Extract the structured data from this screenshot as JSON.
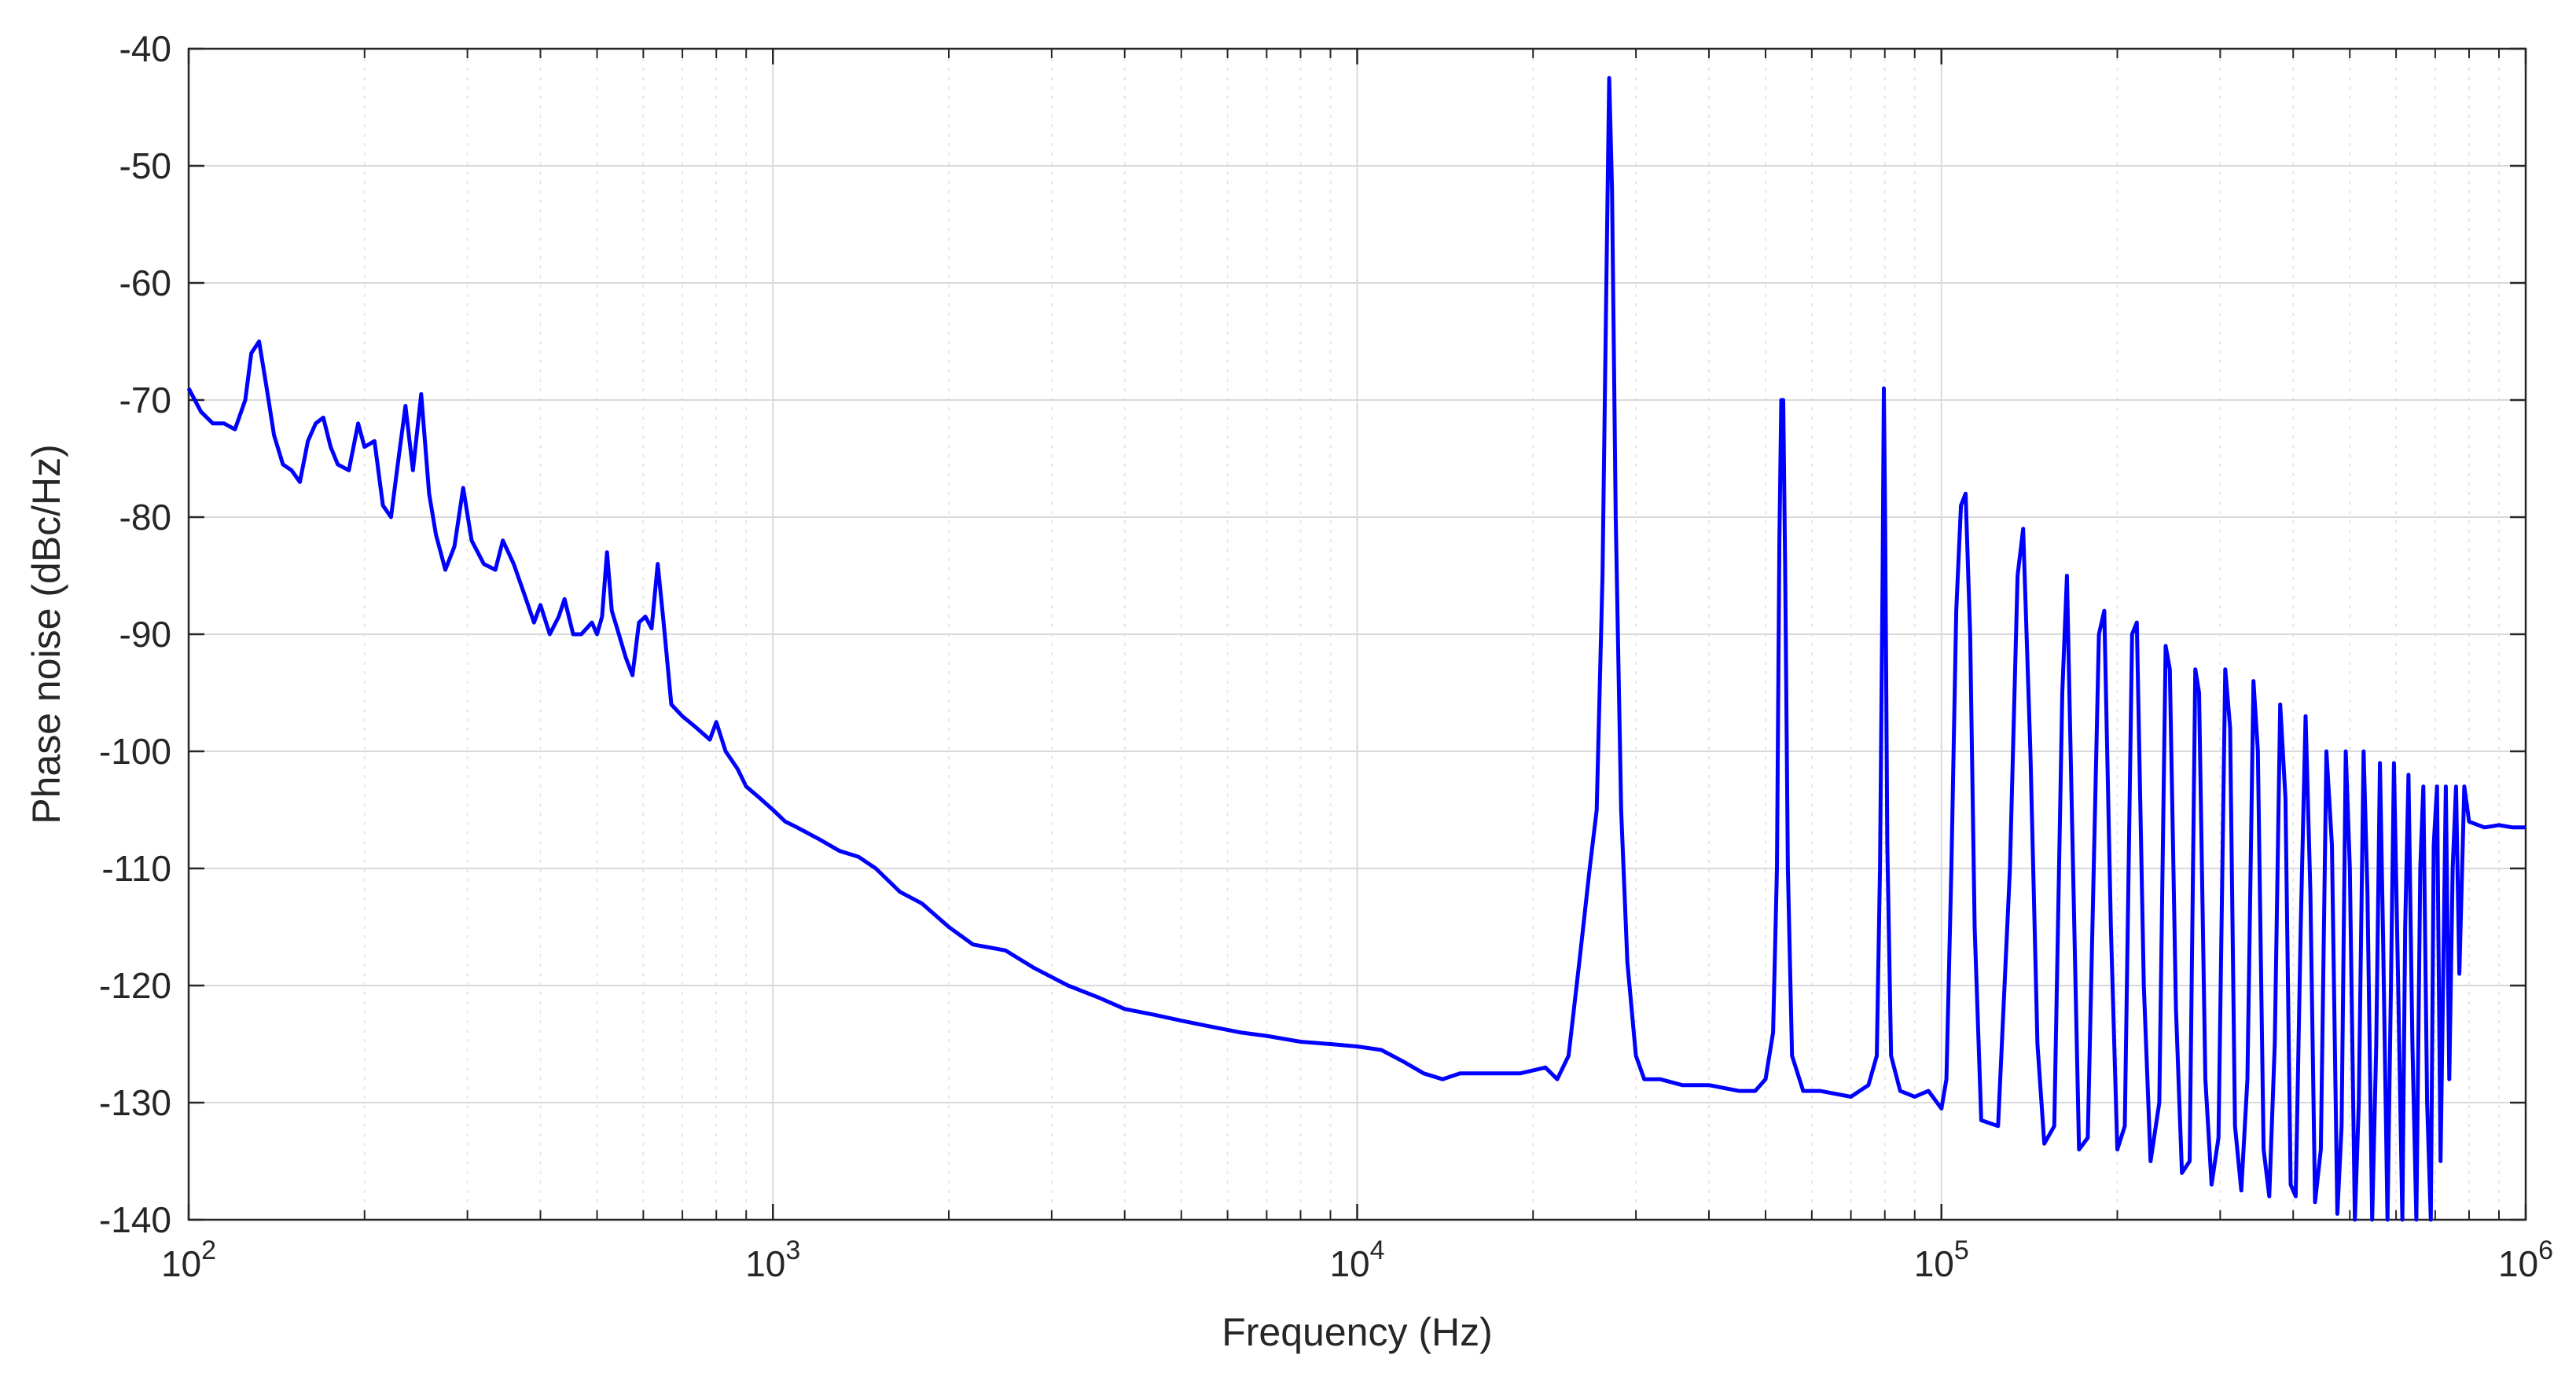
{
  "chart_data": {
    "type": "line",
    "title": "",
    "xlabel": "Frequency (Hz)",
    "ylabel": "Phase noise (dBc/Hz)",
    "x_scale": "log",
    "xlim": [
      100,
      1000000
    ],
    "ylim": [
      -140,
      -40
    ],
    "grid": true,
    "minor_grid": true,
    "legend": "none",
    "line_color": "#0000ff",
    "x_ticks": [
      {
        "value": 100,
        "base": "10",
        "exp": "2"
      },
      {
        "value": 1000,
        "base": "10",
        "exp": "3"
      },
      {
        "value": 10000,
        "base": "10",
        "exp": "4"
      },
      {
        "value": 100000,
        "base": "10",
        "exp": "5"
      },
      {
        "value": 1000000,
        "base": "10",
        "exp": "6"
      }
    ],
    "y_ticks": [
      -40,
      -50,
      -60,
      -70,
      -80,
      -90,
      -100,
      -110,
      -120,
      -130,
      -140
    ],
    "series": [
      {
        "points": [
          [
            100,
            -69
          ],
          [
            105,
            -71
          ],
          [
            110,
            -72
          ],
          [
            115,
            -72
          ],
          [
            120,
            -72.5
          ],
          [
            125,
            -70
          ],
          [
            128,
            -66
          ],
          [
            132,
            -65
          ],
          [
            136,
            -69
          ],
          [
            140,
            -73
          ],
          [
            145,
            -75.5
          ],
          [
            150,
            -76
          ],
          [
            155,
            -77
          ],
          [
            160,
            -73.5
          ],
          [
            165,
            -72
          ],
          [
            170,
            -71.5
          ],
          [
            175,
            -74
          ],
          [
            180,
            -75.5
          ],
          [
            188,
            -76
          ],
          [
            195,
            -72
          ],
          [
            200,
            -74
          ],
          [
            208,
            -73.5
          ],
          [
            215,
            -79
          ],
          [
            222,
            -80
          ],
          [
            228,
            -75.5
          ],
          [
            235,
            -70.5
          ],
          [
            242,
            -76
          ],
          [
            250,
            -69.5
          ],
          [
            258,
            -78
          ],
          [
            265,
            -81.5
          ],
          [
            275,
            -84.5
          ],
          [
            285,
            -82.5
          ],
          [
            295,
            -77.5
          ],
          [
            305,
            -82
          ],
          [
            320,
            -84
          ],
          [
            335,
            -84.5
          ],
          [
            345,
            -82
          ],
          [
            360,
            -84
          ],
          [
            375,
            -86.5
          ],
          [
            390,
            -89
          ],
          [
            400,
            -87.5
          ],
          [
            415,
            -90
          ],
          [
            430,
            -88.5
          ],
          [
            440,
            -87
          ],
          [
            455,
            -90
          ],
          [
            470,
            -90
          ],
          [
            490,
            -89
          ],
          [
            500,
            -90
          ],
          [
            510,
            -88.5
          ],
          [
            520,
            -83
          ],
          [
            530,
            -88
          ],
          [
            545,
            -90
          ],
          [
            560,
            -92
          ],
          [
            575,
            -93.5
          ],
          [
            590,
            -89
          ],
          [
            605,
            -88.5
          ],
          [
            620,
            -89.5
          ],
          [
            635,
            -84
          ],
          [
            650,
            -89
          ],
          [
            670,
            -96
          ],
          [
            700,
            -97
          ],
          [
            740,
            -98
          ],
          [
            780,
            -99
          ],
          [
            800,
            -97.5
          ],
          [
            830,
            -100
          ],
          [
            870,
            -101.5
          ],
          [
            900,
            -103
          ],
          [
            950,
            -104
          ],
          [
            1000,
            -105
          ],
          [
            1050,
            -106
          ],
          [
            1100,
            -106.5
          ],
          [
            1200,
            -107.5
          ],
          [
            1300,
            -108.5
          ],
          [
            1400,
            -109
          ],
          [
            1500,
            -110
          ],
          [
            1650,
            -112
          ],
          [
            1800,
            -113
          ],
          [
            2000,
            -115
          ],
          [
            2200,
            -116.5
          ],
          [
            2500,
            -117
          ],
          [
            2800,
            -118.5
          ],
          [
            3200,
            -120
          ],
          [
            3600,
            -121
          ],
          [
            4000,
            -122
          ],
          [
            4500,
            -122.5
          ],
          [
            5000,
            -123
          ],
          [
            5600,
            -123.5
          ],
          [
            6300,
            -124
          ],
          [
            7000,
            -124.3
          ],
          [
            8000,
            -124.8
          ],
          [
            9000,
            -125
          ],
          [
            10000,
            -125.2
          ],
          [
            11000,
            -125.5
          ],
          [
            12000,
            -126.5
          ],
          [
            13000,
            -127.5
          ],
          [
            14000,
            -128
          ],
          [
            15000,
            -127.5
          ],
          [
            17000,
            -127.5
          ],
          [
            19000,
            -127.5
          ],
          [
            21000,
            -127
          ],
          [
            22000,
            -128
          ],
          [
            23000,
            -126
          ],
          [
            24000,
            -118
          ],
          [
            25000,
            -110
          ],
          [
            25700,
            -105
          ],
          [
            26300,
            -85
          ],
          [
            26700,
            -60
          ],
          [
            27000,
            -42.5
          ],
          [
            27300,
            -52
          ],
          [
            27700,
            -80
          ],
          [
            28300,
            -105
          ],
          [
            29000,
            -118
          ],
          [
            30000,
            -126
          ],
          [
            31000,
            -128
          ],
          [
            33000,
            -128
          ],
          [
            36000,
            -128.5
          ],
          [
            40000,
            -128.5
          ],
          [
            45000,
            -129
          ],
          [
            48000,
            -129
          ],
          [
            50000,
            -128
          ],
          [
            51500,
            -124
          ],
          [
            52300,
            -110
          ],
          [
            52800,
            -82
          ],
          [
            53200,
            -70
          ],
          [
            53600,
            -70
          ],
          [
            54000,
            -84
          ],
          [
            54600,
            -110
          ],
          [
            55500,
            -126
          ],
          [
            58000,
            -129
          ],
          [
            62000,
            -129
          ],
          [
            70000,
            -129.5
          ],
          [
            75000,
            -128.5
          ],
          [
            77500,
            -126
          ],
          [
            78500,
            -110
          ],
          [
            79300,
            -85
          ],
          [
            79700,
            -69
          ],
          [
            80100,
            -80
          ],
          [
            80800,
            -108
          ],
          [
            82000,
            -126
          ],
          [
            85000,
            -129
          ],
          [
            90000,
            -129.5
          ],
          [
            95000,
            -129
          ],
          [
            100000,
            -130.5
          ],
          [
            102000,
            -128
          ],
          [
            104000,
            -110
          ],
          [
            106000,
            -88
          ],
          [
            108000,
            -79
          ],
          [
            110000,
            -78
          ],
          [
            112000,
            -90
          ],
          [
            114000,
            -115
          ],
          [
            117000,
            -131.5
          ],
          [
            125000,
            -132
          ],
          [
            131000,
            -110
          ],
          [
            135000,
            -85
          ],
          [
            138000,
            -81
          ],
          [
            142000,
            -100
          ],
          [
            146000,
            -125
          ],
          [
            150000,
            -133.5
          ],
          [
            156000,
            -132
          ],
          [
            161000,
            -95
          ],
          [
            164000,
            -85
          ],
          [
            168000,
            -110
          ],
          [
            172000,
            -134
          ],
          [
            178000,
            -133
          ],
          [
            186000,
            -90
          ],
          [
            190000,
            -88
          ],
          [
            195000,
            -115
          ],
          [
            200000,
            -134
          ],
          [
            206000,
            -132
          ],
          [
            212000,
            -90
          ],
          [
            216000,
            -89
          ],
          [
            222000,
            -120
          ],
          [
            228000,
            -135
          ],
          [
            236000,
            -130
          ],
          [
            242000,
            -91
          ],
          [
            246000,
            -93
          ],
          [
            252000,
            -122
          ],
          [
            258000,
            -136
          ],
          [
            266000,
            -135
          ],
          [
            272000,
            -93
          ],
          [
            276000,
            -95
          ],
          [
            283000,
            -128
          ],
          [
            290000,
            -137
          ],
          [
            298000,
            -133
          ],
          [
            306000,
            -93
          ],
          [
            312000,
            -98
          ],
          [
            318000,
            -132
          ],
          [
            326000,
            -137.5
          ],
          [
            334000,
            -128
          ],
          [
            342000,
            -94
          ],
          [
            348000,
            -100
          ],
          [
            356000,
            -134
          ],
          [
            364000,
            -138
          ],
          [
            372000,
            -125
          ],
          [
            380000,
            -96
          ],
          [
            388000,
            -104
          ],
          [
            396000,
            -137
          ],
          [
            404000,
            -138
          ],
          [
            412000,
            -115
          ],
          [
            420000,
            -97
          ],
          [
            428000,
            -112
          ],
          [
            436000,
            -138.5
          ],
          [
            446000,
            -134
          ],
          [
            456000,
            -100
          ],
          [
            466000,
            -108
          ],
          [
            476000,
            -139.5
          ],
          [
            484000,
            -132
          ],
          [
            492000,
            -100
          ],
          [
            500000,
            -110
          ],
          [
            510000,
            -140
          ],
          [
            518000,
            -130
          ],
          [
            528000,
            -100
          ],
          [
            536000,
            -112
          ],
          [
            546000,
            -140
          ],
          [
            555000,
            -125
          ],
          [
            563000,
            -101
          ],
          [
            570000,
            -116
          ],
          [
            580000,
            -140
          ],
          [
            588000,
            -120
          ],
          [
            595000,
            -101
          ],
          [
            605000,
            -120
          ],
          [
            615000,
            -140
          ],
          [
            622000,
            -115
          ],
          [
            630000,
            -102
          ],
          [
            640000,
            -125
          ],
          [
            650000,
            -140
          ],
          [
            660000,
            -110
          ],
          [
            668000,
            -103
          ],
          [
            678000,
            -130
          ],
          [
            688000,
            -140
          ],
          [
            696000,
            -108
          ],
          [
            705000,
            -103
          ],
          [
            715000,
            -135
          ],
          [
            722000,
            -120
          ],
          [
            730000,
            -103
          ],
          [
            740000,
            -128
          ],
          [
            750000,
            -110
          ],
          [
            760000,
            -103
          ],
          [
            770000,
            -119
          ],
          [
            785000,
            -103
          ],
          [
            800000,
            -106
          ],
          [
            850000,
            -106.5
          ],
          [
            900000,
            -106.3
          ],
          [
            950000,
            -106.5
          ],
          [
            1000000,
            -106.5
          ]
        ]
      }
    ]
  }
}
